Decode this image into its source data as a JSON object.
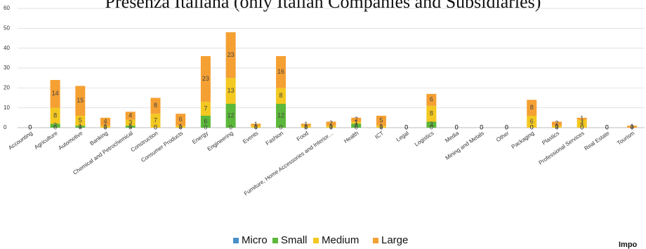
{
  "chart_data": {
    "type": "bar",
    "stacked": true,
    "title": "Presenza Italiana (only Italian Companies and Subsidiaries)",
    "xlabel": "",
    "ylabel": "",
    "ylim": [
      0,
      60
    ],
    "yticks": [
      0,
      10,
      20,
      30,
      40,
      50,
      60
    ],
    "grid": true,
    "legend_position": "bottom",
    "categories": [
      "Accounting",
      "Agriculture",
      "Automotive",
      "Banking",
      "Chemical and Petrochemical",
      "Construction",
      "Consumer Products",
      "Energy",
      "Engineering",
      "Events",
      "Fashion",
      "Food",
      "Furniture, Home Accessories and Interior…",
      "Health",
      "ICT",
      "Legal",
      "Logistics",
      "Media",
      "Mining and Metals",
      "Other",
      "Packaging",
      "Plastics",
      "Professional Services",
      "Real Estate",
      "Tourism"
    ],
    "series": [
      {
        "name": "Micro",
        "color": "#4a90c8",
        "values": [
          0,
          0,
          0,
          0,
          0,
          0,
          0,
          0,
          0,
          0,
          0,
          0,
          0,
          0,
          0,
          0,
          0,
          0,
          0,
          0,
          0,
          0,
          0,
          0,
          0
        ]
      },
      {
        "name": "Small",
        "color": "#5cb83a",
        "values": [
          0,
          2,
          1,
          0,
          1,
          0,
          0,
          6,
          12,
          0,
          12,
          0,
          0,
          2,
          0,
          0,
          3,
          0,
          0,
          0,
          0,
          0,
          0,
          0,
          0
        ]
      },
      {
        "name": "Medium",
        "color": "#f3c820",
        "values": [
          0,
          8,
          5,
          1,
          3,
          7,
          1,
          7,
          13,
          1,
          8,
          1,
          1,
          1,
          1,
          0,
          8,
          0,
          0,
          0,
          6,
          1,
          4,
          0,
          0
        ]
      },
      {
        "name": "Large",
        "color": "#f5a033",
        "values": [
          0,
          14,
          15,
          4,
          4,
          8,
          6,
          23,
          23,
          1,
          16,
          1,
          2,
          2,
          5,
          0,
          6,
          0,
          0,
          0,
          8,
          2,
          1,
          0,
          1
        ]
      }
    ]
  },
  "footer": {
    "corner_text": "Impo"
  }
}
